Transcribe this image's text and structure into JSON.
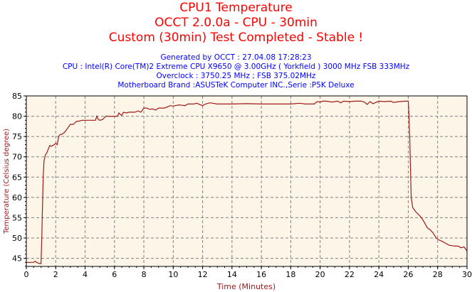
{
  "header": {
    "title_lines": [
      "CPU1 Temperature",
      "OCCT 2.0.0a - CPU - 30min",
      "Custom (30min) Test Completed - Stable !"
    ],
    "info_lines": [
      "Generated by OCCT : 27.04.08 17:28:23",
      "CPU : Intel(R) Core(TM)2 Extreme CPU X9650 @ 3.00GHz ( Yorkfield ) 3000 MHz FSB 333MHz",
      "Overclock : 3750.25 MHz ; FSB 375.02MHz",
      "Motherboard Brand :ASUSTeK Computer INC.,Serie :P5K Deluxe"
    ]
  },
  "chart_data": {
    "type": "line",
    "title": "CPU1 Temperature",
    "xlabel": "Time (Minutes)",
    "ylabel": "Temperature (Celsius degree)",
    "xlim": [
      0,
      30
    ],
    "ylim": [
      43,
      85
    ],
    "xticks": [
      0,
      2,
      4,
      6,
      8,
      10,
      12,
      14,
      16,
      18,
      20,
      22,
      24,
      26,
      28,
      30
    ],
    "yticks": [
      45,
      50,
      55,
      60,
      65,
      70,
      75,
      80,
      85
    ],
    "grid": true,
    "colors": {
      "line": "#a01818",
      "plot_bg": "#fdf6e8",
      "grid": "#808080",
      "title": "#ff0000",
      "info": "#0000ff",
      "axis_label": "#a01818"
    },
    "series": [
      {
        "x": [
          0,
          0.5,
          0.6,
          0.7,
          0.9,
          1.0,
          1.05,
          1.1,
          1.15,
          1.2,
          1.3,
          1.4,
          1.5,
          1.6,
          1.7,
          1.8,
          1.9,
          2.0,
          2.1,
          2.2,
          2.3,
          2.4,
          2.6,
          2.8,
          3.0,
          3.2,
          3.4,
          3.6,
          3.8,
          4.2,
          4.7,
          4.8,
          4.9,
          5.0,
          5.2,
          5.4,
          5.8,
          6.2,
          6.3,
          6.4,
          6.5,
          6.6,
          6.8,
          7.0,
          7.4,
          7.6,
          7.8,
          8.0,
          8.2,
          8.4,
          8.6,
          8.8,
          9.0,
          9.4,
          9.6,
          9.8,
          10.0,
          10.4,
          10.8,
          11.0,
          11.4,
          11.6,
          12.0,
          12.2,
          12.5,
          13.0,
          14.0,
          15.0,
          16.0,
          17.0,
          18.0,
          18.6,
          19.0,
          19.6,
          19.8,
          20.0,
          20.2,
          20.4,
          20.8,
          21.2,
          21.4,
          21.6,
          22.0,
          22.4,
          22.8,
          23.0,
          23.2,
          23.4,
          23.6,
          24.0,
          24.4,
          24.8,
          25.0,
          25.4,
          25.8,
          26.0,
          26.05,
          26.1,
          26.15,
          26.2,
          26.3,
          26.5,
          26.7,
          26.9,
          27.1,
          27.3,
          27.5,
          27.7,
          27.9,
          28.1,
          28.3,
          28.5,
          28.8,
          29.2,
          29.4,
          29.6,
          29.8,
          30.0
        ],
        "y": [
          44,
          44,
          44.3,
          44,
          43.7,
          43.7,
          50,
          58,
          65,
          69,
          70.5,
          71,
          72,
          72.8,
          72.6,
          72.8,
          73,
          73.3,
          73,
          75,
          75.5,
          75.5,
          76,
          77,
          78,
          78,
          78.7,
          78.8,
          79,
          79,
          79,
          80,
          79.2,
          79,
          79.2,
          80,
          80,
          80,
          80.8,
          80.4,
          80.2,
          81,
          80.8,
          81,
          81,
          81.3,
          81,
          82,
          82,
          81.7,
          81.8,
          81.5,
          82,
          82,
          82.3,
          82.6,
          82.5,
          82.8,
          82.6,
          83,
          83,
          83.2,
          82.6,
          83,
          83.3,
          83,
          83,
          83.1,
          83,
          83,
          83,
          83.2,
          83,
          83,
          83.6,
          83.5,
          83.7,
          83.7,
          83.5,
          83.7,
          83.3,
          83.7,
          83.6,
          83.7,
          83.7,
          83.5,
          82.9,
          83.6,
          83.1,
          83.7,
          83.6,
          83.7,
          83.4,
          83.6,
          83.7,
          83.7,
          80,
          75,
          67,
          60,
          57.5,
          56.5,
          55.8,
          55,
          53.8,
          52.5,
          52,
          51.2,
          50,
          49.5,
          49.2,
          48.8,
          48.2,
          48,
          48,
          47.6,
          47.8,
          46.8
        ]
      }
    ]
  }
}
